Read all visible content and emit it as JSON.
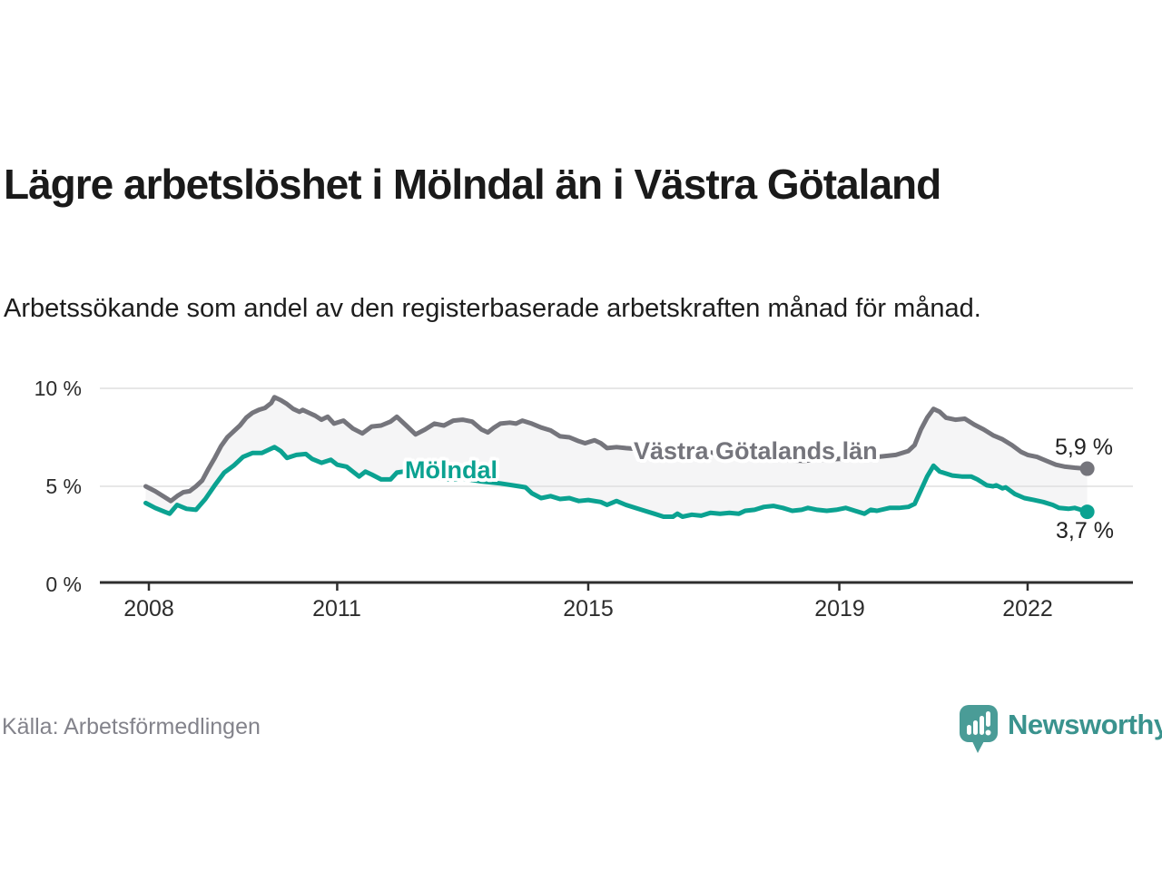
{
  "title": "Lägre arbetslöshet i Mölndal än i Västra Götaland",
  "subtitle": "Arbetssökande som andel av den registerbaserade arbetskraften månad för månad.",
  "source": "Källa: Arbetsförmedlingen",
  "branding": {
    "name": "Newsworthy",
    "logo_icon": "bar-chart-speech-bubble-icon",
    "logo_color": "#4a9c97",
    "text_color": "#3a938e"
  },
  "chart_data": {
    "type": "line",
    "unit": "%",
    "grid": "horizontal-only",
    "x_ticks": [
      2008,
      2011,
      2015,
      2019,
      2022
    ],
    "y_ticks": [
      0,
      5,
      10
    ],
    "y_tick_labels": [
      "0 %",
      "5 %",
      "10 %"
    ],
    "ylim": [
      0,
      10.4
    ],
    "xlim": [
      2007.2,
      2023.7
    ],
    "band_fill": "#f5f5f6",
    "gridline_color": "#dfdfdf",
    "axis_color": "#2e2e2e",
    "series": [
      {
        "name": "Västra Götalands län",
        "color": "#75757c",
        "end_label": "5,9 %",
        "end_value": 5.9,
        "points": [
          [
            2007.95,
            5.0
          ],
          [
            2008.1,
            4.75
          ],
          [
            2008.25,
            4.45
          ],
          [
            2008.35,
            4.25
          ],
          [
            2008.45,
            4.5
          ],
          [
            2008.55,
            4.7
          ],
          [
            2008.65,
            4.75
          ],
          [
            2008.75,
            5.0
          ],
          [
            2008.85,
            5.3
          ],
          [
            2008.95,
            5.9
          ],
          [
            2009.05,
            6.45
          ],
          [
            2009.15,
            7.05
          ],
          [
            2009.25,
            7.5
          ],
          [
            2009.35,
            7.8
          ],
          [
            2009.45,
            8.1
          ],
          [
            2009.55,
            8.5
          ],
          [
            2009.65,
            8.75
          ],
          [
            2009.75,
            8.9
          ],
          [
            2009.85,
            9.0
          ],
          [
            2009.95,
            9.25
          ],
          [
            2010.0,
            9.55
          ],
          [
            2010.1,
            9.4
          ],
          [
            2010.2,
            9.2
          ],
          [
            2010.3,
            8.95
          ],
          [
            2010.4,
            8.8
          ],
          [
            2010.45,
            8.9
          ],
          [
            2010.55,
            8.75
          ],
          [
            2010.65,
            8.6
          ],
          [
            2010.75,
            8.4
          ],
          [
            2010.85,
            8.55
          ],
          [
            2010.95,
            8.2
          ],
          [
            2011.1,
            8.35
          ],
          [
            2011.25,
            7.95
          ],
          [
            2011.4,
            7.7
          ],
          [
            2011.55,
            8.05
          ],
          [
            2011.7,
            8.1
          ],
          [
            2011.85,
            8.3
          ],
          [
            2011.95,
            8.55
          ],
          [
            2012.1,
            8.1
          ],
          [
            2012.25,
            7.65
          ],
          [
            2012.4,
            7.9
          ],
          [
            2012.55,
            8.2
          ],
          [
            2012.7,
            8.1
          ],
          [
            2012.85,
            8.35
          ],
          [
            2013.0,
            8.4
          ],
          [
            2013.15,
            8.3
          ],
          [
            2013.3,
            7.9
          ],
          [
            2013.4,
            7.75
          ],
          [
            2013.5,
            8.0
          ],
          [
            2013.6,
            8.2
          ],
          [
            2013.75,
            8.25
          ],
          [
            2013.85,
            8.2
          ],
          [
            2013.95,
            8.35
          ],
          [
            2014.1,
            8.2
          ],
          [
            2014.25,
            8.0
          ],
          [
            2014.4,
            7.85
          ],
          [
            2014.55,
            7.55
          ],
          [
            2014.7,
            7.5
          ],
          [
            2014.85,
            7.3
          ],
          [
            2014.95,
            7.2
          ],
          [
            2015.1,
            7.35
          ],
          [
            2015.2,
            7.2
          ],
          [
            2015.3,
            6.95
          ],
          [
            2015.45,
            7.0
          ],
          [
            2015.6,
            6.95
          ],
          [
            2015.8,
            6.9
          ],
          [
            2016.0,
            6.9
          ],
          [
            2016.3,
            6.8
          ],
          [
            2016.6,
            6.75
          ],
          [
            2016.9,
            6.75
          ],
          [
            2017.2,
            6.6
          ],
          [
            2017.5,
            6.5
          ],
          [
            2017.8,
            6.45
          ],
          [
            2018.1,
            6.35
          ],
          [
            2018.4,
            6.3
          ],
          [
            2018.7,
            6.35
          ],
          [
            2019.0,
            6.4
          ],
          [
            2019.3,
            6.45
          ],
          [
            2019.6,
            6.5
          ],
          [
            2019.9,
            6.6
          ],
          [
            2020.1,
            6.8
          ],
          [
            2020.2,
            7.1
          ],
          [
            2020.3,
            7.9
          ],
          [
            2020.4,
            8.5
          ],
          [
            2020.5,
            8.95
          ],
          [
            2020.6,
            8.8
          ],
          [
            2020.7,
            8.5
          ],
          [
            2020.85,
            8.4
          ],
          [
            2021.0,
            8.45
          ],
          [
            2021.15,
            8.15
          ],
          [
            2021.3,
            7.9
          ],
          [
            2021.45,
            7.6
          ],
          [
            2021.6,
            7.4
          ],
          [
            2021.75,
            7.1
          ],
          [
            2021.9,
            6.75
          ],
          [
            2022.0,
            6.6
          ],
          [
            2022.15,
            6.5
          ],
          [
            2022.3,
            6.3
          ],
          [
            2022.45,
            6.1
          ],
          [
            2022.6,
            6.0
          ],
          [
            2022.75,
            5.95
          ],
          [
            2022.95,
            5.9
          ]
        ]
      },
      {
        "name": "Mölndal",
        "color": "#0ba291",
        "end_label": "3,7 %",
        "end_value": 3.7,
        "points": [
          [
            2007.95,
            4.15
          ],
          [
            2008.1,
            3.9
          ],
          [
            2008.25,
            3.7
          ],
          [
            2008.33,
            3.6
          ],
          [
            2008.45,
            4.05
          ],
          [
            2008.6,
            3.85
          ],
          [
            2008.75,
            3.8
          ],
          [
            2008.9,
            4.35
          ],
          [
            2009.05,
            5.05
          ],
          [
            2009.2,
            5.7
          ],
          [
            2009.35,
            6.05
          ],
          [
            2009.5,
            6.5
          ],
          [
            2009.65,
            6.7
          ],
          [
            2009.8,
            6.7
          ],
          [
            2009.9,
            6.85
          ],
          [
            2010.0,
            7.0
          ],
          [
            2010.1,
            6.8
          ],
          [
            2010.2,
            6.45
          ],
          [
            2010.35,
            6.6
          ],
          [
            2010.5,
            6.65
          ],
          [
            2010.6,
            6.4
          ],
          [
            2010.75,
            6.2
          ],
          [
            2010.9,
            6.35
          ],
          [
            2011.0,
            6.1
          ],
          [
            2011.15,
            6.0
          ],
          [
            2011.25,
            5.75
          ],
          [
            2011.35,
            5.5
          ],
          [
            2011.45,
            5.75
          ],
          [
            2011.55,
            5.6
          ],
          [
            2011.7,
            5.35
          ],
          [
            2011.85,
            5.35
          ],
          [
            2011.95,
            5.7
          ],
          [
            2012.05,
            5.75
          ],
          [
            2012.2,
            5.6
          ],
          [
            2012.5,
            5.45
          ],
          [
            2012.8,
            5.35
          ],
          [
            2013.0,
            5.4
          ],
          [
            2013.3,
            5.25
          ],
          [
            2013.6,
            5.15
          ],
          [
            2013.9,
            5.0
          ],
          [
            2014.0,
            4.95
          ],
          [
            2014.1,
            4.65
          ],
          [
            2014.25,
            4.4
          ],
          [
            2014.4,
            4.5
          ],
          [
            2014.55,
            4.35
          ],
          [
            2014.7,
            4.4
          ],
          [
            2014.85,
            4.25
          ],
          [
            2015.0,
            4.3
          ],
          [
            2015.2,
            4.2
          ],
          [
            2015.3,
            4.05
          ],
          [
            2015.45,
            4.25
          ],
          [
            2015.6,
            4.05
          ],
          [
            2015.75,
            3.9
          ],
          [
            2015.9,
            3.75
          ],
          [
            2016.05,
            3.6
          ],
          [
            2016.2,
            3.45
          ],
          [
            2016.35,
            3.45
          ],
          [
            2016.42,
            3.6
          ],
          [
            2016.5,
            3.45
          ],
          [
            2016.65,
            3.55
          ],
          [
            2016.8,
            3.5
          ],
          [
            2016.95,
            3.65
          ],
          [
            2017.1,
            3.6
          ],
          [
            2017.25,
            3.65
          ],
          [
            2017.4,
            3.6
          ],
          [
            2017.5,
            3.75
          ],
          [
            2017.65,
            3.8
          ],
          [
            2017.8,
            3.95
          ],
          [
            2017.95,
            4.0
          ],
          [
            2018.1,
            3.9
          ],
          [
            2018.25,
            3.75
          ],
          [
            2018.4,
            3.8
          ],
          [
            2018.5,
            3.9
          ],
          [
            2018.65,
            3.8
          ],
          [
            2018.8,
            3.75
          ],
          [
            2018.95,
            3.8
          ],
          [
            2019.1,
            3.9
          ],
          [
            2019.25,
            3.75
          ],
          [
            2019.4,
            3.6
          ],
          [
            2019.5,
            3.8
          ],
          [
            2019.6,
            3.75
          ],
          [
            2019.8,
            3.9
          ],
          [
            2019.95,
            3.9
          ],
          [
            2020.1,
            3.95
          ],
          [
            2020.2,
            4.1
          ],
          [
            2020.3,
            4.8
          ],
          [
            2020.4,
            5.5
          ],
          [
            2020.5,
            6.05
          ],
          [
            2020.6,
            5.75
          ],
          [
            2020.8,
            5.55
          ],
          [
            2020.95,
            5.5
          ],
          [
            2021.1,
            5.5
          ],
          [
            2021.2,
            5.35
          ],
          [
            2021.35,
            5.05
          ],
          [
            2021.45,
            5.0
          ],
          [
            2021.5,
            5.05
          ],
          [
            2021.6,
            4.9
          ],
          [
            2021.65,
            4.95
          ],
          [
            2021.8,
            4.6
          ],
          [
            2021.95,
            4.4
          ],
          [
            2022.1,
            4.3
          ],
          [
            2022.25,
            4.2
          ],
          [
            2022.4,
            4.05
          ],
          [
            2022.5,
            3.9
          ],
          [
            2022.65,
            3.85
          ],
          [
            2022.75,
            3.9
          ],
          [
            2022.85,
            3.8
          ],
          [
            2022.95,
            3.7
          ]
        ]
      }
    ]
  }
}
